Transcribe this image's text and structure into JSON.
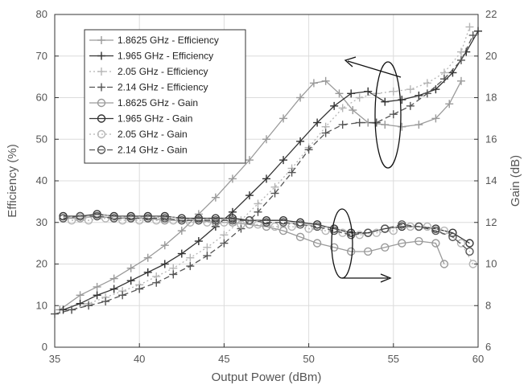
{
  "chart_data": {
    "type": "line",
    "xlabel": "Output Power (dBm)",
    "ylabel_left": "Efficiency (%)",
    "ylabel_right": "Gain (dB)",
    "xlim": [
      35,
      60
    ],
    "ylim_left": [
      0,
      80
    ],
    "ylim_right": [
      6,
      22
    ],
    "x_ticks": [
      35,
      40,
      45,
      50,
      55,
      60
    ],
    "y_ticks_left": [
      0,
      10,
      20,
      30,
      40,
      50,
      60,
      70,
      80
    ],
    "y_ticks_right": [
      6,
      8,
      10,
      12,
      14,
      16,
      18,
      20,
      22
    ],
    "grid": true,
    "legend_position": "top-left",
    "series": [
      {
        "name": "1.8625 GHz - Efficiency",
        "axis": "left",
        "marker": "plus",
        "dash": "solid",
        "color": "#9a9a9a",
        "x": [
          35.3,
          36.5,
          37.5,
          38.5,
          39.5,
          40.5,
          41.5,
          42.5,
          43.5,
          44.5,
          45.5,
          46.5,
          47.5,
          48.5,
          49.5,
          50.3,
          51.0,
          51.8,
          52.6,
          53.5,
          54.5,
          55.5,
          56.5,
          57.5,
          58.3,
          59.0
        ],
        "y": [
          9.0,
          12.5,
          14.5,
          16.5,
          19.0,
          21.5,
          24.5,
          28.0,
          32.0,
          36.0,
          40.5,
          45.0,
          50.0,
          55.0,
          60.0,
          63.5,
          64.0,
          61.0,
          57.0,
          54.0,
          53.5,
          53.0,
          53.5,
          55.0,
          58.5,
          64.0
        ]
      },
      {
        "name": "1.965 GHz - Efficiency",
        "axis": "left",
        "marker": "plus",
        "dash": "solid",
        "color": "#333333",
        "x": [
          35.5,
          36.5,
          37.5,
          38.5,
          39.5,
          40.5,
          41.5,
          42.5,
          43.5,
          44.5,
          45.5,
          46.5,
          47.5,
          48.5,
          49.5,
          50.5,
          51.5,
          52.5,
          53.5,
          54.5,
          55.5,
          56.5,
          57.5,
          58.5,
          59.3,
          60.0
        ],
        "y": [
          9.0,
          10.5,
          12.5,
          14.0,
          16.0,
          18.0,
          20.0,
          22.5,
          25.5,
          29.0,
          32.5,
          36.5,
          40.5,
          45.0,
          49.5,
          54.0,
          58.0,
          61.0,
          61.5,
          59.0,
          59.5,
          60.5,
          62.0,
          66.0,
          71.0,
          76.0
        ]
      },
      {
        "name": "2.05 GHz - Efficiency",
        "axis": "left",
        "marker": "plus",
        "dash": "dotted",
        "color": "#b5b5b5",
        "x": [
          36.0,
          37.0,
          38.0,
          39.0,
          40.0,
          41.0,
          42.0,
          43.0,
          44.0,
          45.0,
          46.0,
          47.0,
          48.0,
          49.0,
          50.0,
          51.0,
          52.0,
          53.0,
          54.0,
          55.0,
          56.0,
          57.0,
          58.0,
          59.0,
          59.5
        ],
        "y": [
          9.0,
          10.5,
          12.0,
          13.5,
          15.0,
          17.0,
          19.0,
          21.5,
          24.0,
          27.0,
          30.5,
          34.5,
          38.5,
          43.0,
          48.0,
          53.0,
          57.5,
          60.0,
          61.0,
          61.5,
          62.0,
          63.5,
          66.0,
          71.0,
          77.0
        ]
      },
      {
        "name": "2.14 GHz - Efficiency",
        "axis": "left",
        "marker": "plus",
        "dash": "dashed",
        "color": "#555555",
        "x": [
          35.0,
          36.0,
          37.0,
          38.0,
          39.0,
          40.0,
          41.0,
          42.0,
          43.0,
          44.0,
          45.0,
          46.0,
          47.0,
          48.0,
          49.0,
          50.0,
          51.0,
          52.0,
          53.0,
          54.0,
          55.0,
          56.0,
          57.0,
          58.0,
          59.0,
          59.7
        ],
        "y": [
          8.0,
          9.0,
          10.0,
          11.0,
          12.5,
          14.0,
          15.5,
          17.5,
          19.5,
          22.0,
          25.0,
          28.5,
          32.5,
          37.0,
          42.0,
          47.5,
          51.5,
          53.5,
          54.0,
          54.0,
          56.0,
          58.0,
          61.0,
          64.5,
          69.0,
          75.0
        ]
      },
      {
        "name": "1.8625 GHz - Gain",
        "axis": "right",
        "marker": "circle",
        "dash": "solid",
        "color": "#9a9a9a",
        "x": [
          35.5,
          36.5,
          37.5,
          38.5,
          39.5,
          40.5,
          41.5,
          42.5,
          43.5,
          44.5,
          45.5,
          46.5,
          47.5,
          48.5,
          49.5,
          50.5,
          51.5,
          52.5,
          53.5,
          54.5,
          55.5,
          56.5,
          57.5,
          58.0
        ],
        "y": [
          12.2,
          12.2,
          12.3,
          12.2,
          12.2,
          12.2,
          12.1,
          12.1,
          12.1,
          12.0,
          12.0,
          11.9,
          11.8,
          11.6,
          11.3,
          11.0,
          10.8,
          10.6,
          10.6,
          10.8,
          11.0,
          11.1,
          11.0,
          10.0
        ]
      },
      {
        "name": "1.965 GHz - Gain",
        "axis": "right",
        "marker": "circle",
        "dash": "solid",
        "color": "#333333",
        "x": [
          35.5,
          36.5,
          37.5,
          38.5,
          39.5,
          40.5,
          41.5,
          42.5,
          43.5,
          44.5,
          45.5,
          46.5,
          47.5,
          48.5,
          49.5,
          50.5,
          51.5,
          52.5,
          53.5,
          54.5,
          55.5,
          56.5,
          57.5,
          58.5,
          59.5
        ],
        "y": [
          12.3,
          12.3,
          12.4,
          12.3,
          12.3,
          12.3,
          12.3,
          12.2,
          12.2,
          12.2,
          12.2,
          12.1,
          12.1,
          12.1,
          12.0,
          11.9,
          11.7,
          11.5,
          11.5,
          11.7,
          11.8,
          11.8,
          11.7,
          11.5,
          11.0
        ]
      },
      {
        "name": "2.05 GHz - Gain",
        "axis": "right",
        "marker": "circle",
        "dash": "dotted",
        "color": "#b5b5b5",
        "x": [
          36.0,
          37.0,
          38.0,
          39.0,
          40.0,
          41.0,
          42.0,
          43.0,
          44.0,
          45.0,
          46.0,
          47.0,
          48.0,
          49.0,
          50.0,
          51.0,
          52.0,
          53.0,
          54.0,
          55.0,
          56.0,
          57.0,
          58.0,
          59.0,
          59.7
        ],
        "y": [
          12.1,
          12.1,
          12.2,
          12.1,
          12.1,
          12.1,
          12.1,
          12.0,
          12.0,
          12.0,
          11.9,
          11.9,
          11.8,
          11.8,
          11.7,
          11.6,
          11.5,
          11.4,
          11.5,
          11.6,
          11.8,
          11.8,
          11.6,
          11.0,
          10.0
        ]
      },
      {
        "name": "2.14 GHz - Gain",
        "axis": "right",
        "marker": "circle",
        "dash": "dashed",
        "color": "#555555",
        "x": [
          35.5,
          36.5,
          37.5,
          38.5,
          39.5,
          40.5,
          41.5,
          42.5,
          43.5,
          44.5,
          45.5,
          46.5,
          47.5,
          48.5,
          49.5,
          50.5,
          51.5,
          52.5,
          53.5,
          54.5,
          55.5,
          56.5,
          57.5,
          58.5,
          59.5
        ],
        "y": [
          12.2,
          12.3,
          12.3,
          12.2,
          12.2,
          12.2,
          12.2,
          12.1,
          12.1,
          12.1,
          12.1,
          12.1,
          12.0,
          12.0,
          11.9,
          11.8,
          11.6,
          11.4,
          11.5,
          11.7,
          11.9,
          11.8,
          11.6,
          11.3,
          10.6
        ]
      }
    ]
  }
}
